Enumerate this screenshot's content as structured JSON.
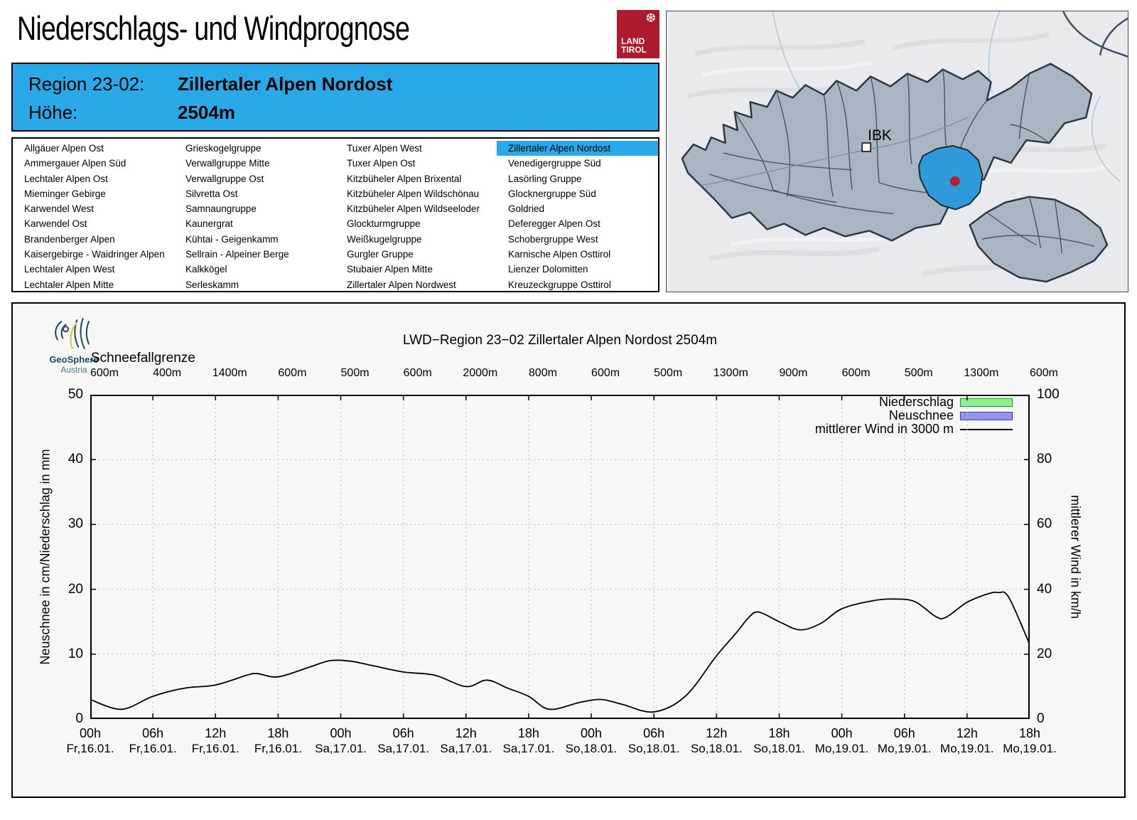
{
  "page": {
    "title": "Niederschlags- und Windprognose"
  },
  "land_tirol_logo": {
    "line1": "LAND",
    "line2": "TIROL",
    "color": "#ad1a2e"
  },
  "info_box": {
    "region_label": "Region 23-02:",
    "region_value": "Zillertaler Alpen Nordost",
    "altitude_label": "Höhe:",
    "altitude_value": "2504m",
    "background": "#29a9e8"
  },
  "region_list": {
    "selected": "Zillertaler Alpen Nordost",
    "highlight_color": "#29a9e8",
    "columns": [
      [
        "Allgäuer Alpen Ost",
        "Ammergauer Alpen Süd",
        "Lechtaler Alpen Ost",
        "Mieminger Gebirge",
        "Karwendel West",
        "Karwendel Ost",
        "Brandenberger Alpen",
        "Kaisergebirge - Waidringer Alpen",
        "Lechtaler Alpen West",
        "Lechtaler Alpen Mitte"
      ],
      [
        "Grieskogelgruppe",
        "Verwallgruppe Mitte",
        "Verwallgruppe Ost",
        "Silvretta Ost",
        "Samnaungruppe",
        "Kaunergrat",
        "Kühtai - Geigenkamm",
        "Sellrain - Alpeiner Berge",
        "Kalkkögel",
        "Serleskamm"
      ],
      [
        "Tuxer Alpen West",
        "Tuxer Alpen Ost",
        "Kitzbüheler Alpen Brixental",
        "Kitzbüheler Alpen Wildschönau",
        "Kitzbüheler Alpen Wildseeloder",
        "Glockturmgruppe",
        "Weißkugelgruppe",
        "Gurgler Gruppe",
        "Stubaier Alpen Mitte",
        "Zillertaler Alpen Nordwest"
      ],
      [
        "Zillertaler Alpen Nordost",
        "Venedigergruppe Süd",
        "Lasörling Gruppe",
        "Glocknergruppe Süd",
        "Goldried",
        "Deferegger Alpen Ost",
        "Schobergruppe West",
        "Karnische Alpen Osttirol",
        "Lienzer Dolomitten",
        "Kreuzeckgruppe Osttirol"
      ]
    ]
  },
  "map": {
    "city_label": "IBK",
    "region_fill": "#a9b5c3",
    "highlight_fill": "#2e9ad9",
    "marker_color": "#b5202a"
  },
  "geosphere_logo": {
    "line1": "GeoSphere",
    "line2": "Austria"
  },
  "chart_data": {
    "type": "line",
    "title": "LWD−Region 23−02 Zillertaler Alpen Nordost 2504m",
    "snowline_label": "Schneefallgrenze",
    "snowline_values": [
      "600m",
      "400m",
      "1400m",
      "600m",
      "500m",
      "600m",
      "2000m",
      "800m",
      "600m",
      "500m",
      "1300m",
      "900m",
      "600m",
      "500m",
      "1300m",
      "600m"
    ],
    "x_ticks": [
      {
        "hour": "00h",
        "day": "Fr,16.01."
      },
      {
        "hour": "06h",
        "day": "Fr,16.01."
      },
      {
        "hour": "12h",
        "day": "Fr,16.01."
      },
      {
        "hour": "18h",
        "day": "Fr,16.01."
      },
      {
        "hour": "00h",
        "day": "Sa,17.01."
      },
      {
        "hour": "06h",
        "day": "Sa,17.01."
      },
      {
        "hour": "12h",
        "day": "Sa,17.01."
      },
      {
        "hour": "18h",
        "day": "Sa,17.01."
      },
      {
        "hour": "00h",
        "day": "So,18.01."
      },
      {
        "hour": "06h",
        "day": "So,18.01."
      },
      {
        "hour": "12h",
        "day": "So,18.01."
      },
      {
        "hour": "18h",
        "day": "So,18.01."
      },
      {
        "hour": "00h",
        "day": "Mo,19.01."
      },
      {
        "hour": "06h",
        "day": "Mo,19.01."
      },
      {
        "hour": "12h",
        "day": "Mo,19.01."
      },
      {
        "hour": "18h",
        "day": "Mo,19.01."
      }
    ],
    "left_axis": {
      "label": "Neuschnee in cm/Niederschlag in mm",
      "min": 0,
      "max": 50,
      "tick_step": 10
    },
    "right_axis": {
      "label": "mittlerer Wind in km/h",
      "min": 0,
      "max": 100,
      "tick_step": 20
    },
    "legend": [
      {
        "label": "Niederschlag",
        "swatch": "box",
        "fill": "#90ee90",
        "stroke": "#0aa01e"
      },
      {
        "label": "Neuschnee",
        "swatch": "box",
        "fill": "#9595ec",
        "stroke": "#3838d8"
      },
      {
        "label": "mittlerer Wind in 3000 m",
        "swatch": "line",
        "stroke": "#000000"
      }
    ],
    "series": [
      {
        "name": "Niederschlag",
        "axis": "left",
        "unit": "mm",
        "type": "bar",
        "values": []
      },
      {
        "name": "Neuschnee",
        "axis": "left",
        "unit": "cm",
        "type": "bar",
        "values": []
      },
      {
        "name": "mittlerer Wind in 3000 m",
        "axis": "right",
        "unit": "km/h",
        "type": "line",
        "x_hours_range": [
          0,
          90
        ],
        "points": [
          [
            0,
            6
          ],
          [
            3,
            3
          ],
          [
            6,
            7
          ],
          [
            9,
            9.5
          ],
          [
            12,
            10.5
          ],
          [
            15,
            13.5
          ],
          [
            16,
            14
          ],
          [
            18,
            13
          ],
          [
            21,
            16
          ],
          [
            23,
            18
          ],
          [
            25,
            17.8
          ],
          [
            27,
            16.5
          ],
          [
            30,
            14.5
          ],
          [
            33,
            13.5
          ],
          [
            36,
            10
          ],
          [
            38,
            12
          ],
          [
            40,
            9.5
          ],
          [
            42,
            7
          ],
          [
            44,
            3
          ],
          [
            47,
            5.2
          ],
          [
            49,
            6
          ],
          [
            51,
            4.5
          ],
          [
            54,
            2.2
          ],
          [
            57,
            7
          ],
          [
            60,
            19.5
          ],
          [
            62,
            27
          ],
          [
            63,
            31
          ],
          [
            64,
            33
          ],
          [
            66,
            30
          ],
          [
            68,
            27.5
          ],
          [
            70,
            29.5
          ],
          [
            72,
            34
          ],
          [
            75,
            36.5
          ],
          [
            77,
            37
          ],
          [
            79,
            36.2
          ],
          [
            81,
            31.6
          ],
          [
            82,
            31.4
          ],
          [
            84,
            36
          ],
          [
            86,
            38.6
          ],
          [
            87,
            39
          ],
          [
            88,
            37.5
          ],
          [
            90,
            23
          ]
        ]
      }
    ],
    "grid": true,
    "legend_position": "top-right"
  }
}
